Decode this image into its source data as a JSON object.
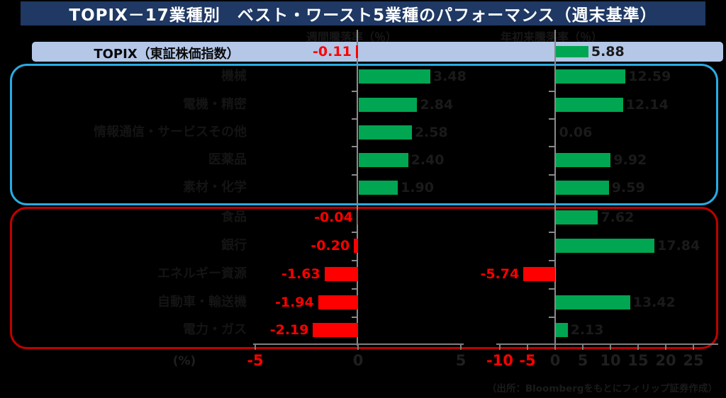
{
  "title": "TOPIX－17業種別　ベスト・ワースト5業種のパフォーマンス（週末基準）",
  "headers": {
    "weekly": "週間騰落率（％）",
    "ytd": "年初来騰落率（％）"
  },
  "topix_row": {
    "label": "TOPIX（東証株価指数）",
    "weekly_value": "-0.11",
    "ytd_value": "5.88"
  },
  "axis": {
    "unit_label": "(%)"
  },
  "source_note": "（出所：Bloombergをもとにフィリップ証券作成）",
  "colors": {
    "title_bg": "#1f3864",
    "topix_row_bg": "#b4c7e7",
    "positive_bar": "#00a651",
    "negative_bar": "#ff0000",
    "best_box_border": "#29abe2",
    "worst_box_border": "#c00000",
    "negative_text": "#ff0000",
    "positive_text": "#1a1a1a",
    "axis_gray": "#7f7f7f"
  },
  "chart_data": {
    "type": "bar",
    "orientation": "horizontal",
    "title": "TOPIX－17業種別　ベスト・ワースト5業種のパフォーマンス（週末基準）",
    "series_names": [
      "週間騰落率（％）",
      "年初来騰落率（％）"
    ],
    "topix": {
      "label": "TOPIX（東証株価指数）",
      "weekly": -0.11,
      "ytd": 5.88
    },
    "best5": [
      {
        "label": "機械",
        "weekly": 3.48,
        "ytd": 12.59
      },
      {
        "label": "電機・精密",
        "weekly": 2.84,
        "ytd": 12.14
      },
      {
        "label": "情報通信・サービスその他",
        "weekly": 2.58,
        "ytd": 0.06
      },
      {
        "label": "医薬品",
        "weekly": 2.4,
        "ytd": 9.92
      },
      {
        "label": "素材・化学",
        "weekly": 1.9,
        "ytd": 9.59
      }
    ],
    "worst5": [
      {
        "label": "食品",
        "weekly": -0.04,
        "ytd": 7.62
      },
      {
        "label": "銀行",
        "weekly": -0.2,
        "ytd": 17.84
      },
      {
        "label": "エネルギー資源",
        "weekly": -1.63,
        "ytd": -5.74
      },
      {
        "label": "自動車・輸送機",
        "weekly": -1.94,
        "ytd": 13.42
      },
      {
        "label": "電力・ガス",
        "weekly": -2.19,
        "ytd": 2.13
      }
    ],
    "weekly_axis": {
      "ticks": [
        -5,
        0,
        5
      ],
      "red_ticks": [
        -5
      ],
      "range": [
        -11,
        5.7
      ]
    },
    "ytd_axis": {
      "ticks": [
        -10,
        -5,
        0,
        5,
        10,
        15,
        20,
        25
      ],
      "red_ticks": [
        -10,
        -5
      ],
      "range": [
        -13,
        28
      ]
    },
    "legend_position": "none",
    "grid": false
  }
}
